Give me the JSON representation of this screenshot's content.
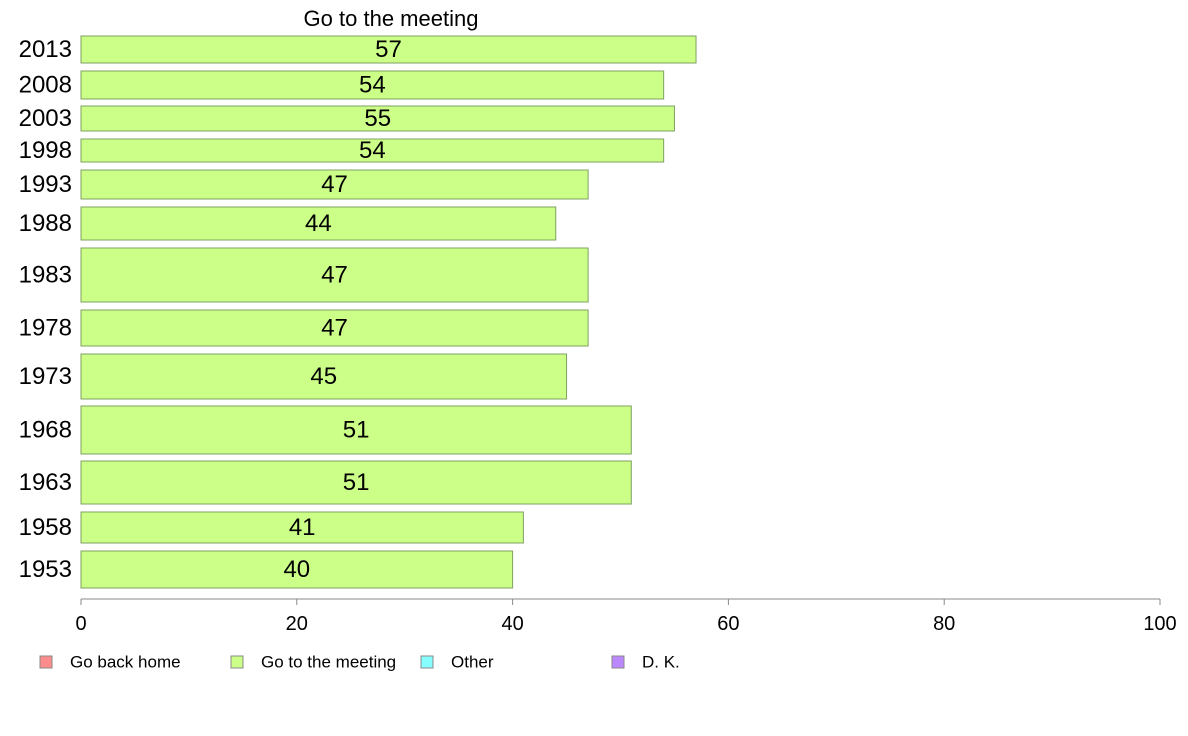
{
  "chart_data": {
    "type": "bar",
    "orientation": "horizontal",
    "title": "Go to the meeting",
    "categories": [
      "2013",
      "2008",
      "2003",
      "1998",
      "1993",
      "1988",
      "1983",
      "1978",
      "1973",
      "1968",
      "1963",
      "1958",
      "1953"
    ],
    "series": [
      {
        "name": "Go to the meeting",
        "values": [
          57,
          54,
          55,
          54,
          47,
          44,
          47,
          47,
          45,
          51,
          51,
          41,
          40
        ]
      }
    ],
    "data_labels": [
      "57",
      "54",
      "55",
      "54",
      "47",
      "44",
      "47",
      "47",
      "45",
      "51",
      "51",
      "41",
      "40"
    ],
    "xlim": [
      0,
      100
    ],
    "x_ticks": [
      "0",
      "20",
      "40",
      "60",
      "80",
      "100"
    ],
    "legend": {
      "placement": "bottom",
      "entries": [
        {
          "label": "Go back home",
          "color": "#ff8c8c"
        },
        {
          "label": "Go to the meeting",
          "color": "#ccff88"
        },
        {
          "label": "Other",
          "color": "#88ffff"
        },
        {
          "label": "D. K.",
          "color": "#bb88ff"
        }
      ]
    },
    "bar_color": "#ccff88",
    "grid": false
  }
}
